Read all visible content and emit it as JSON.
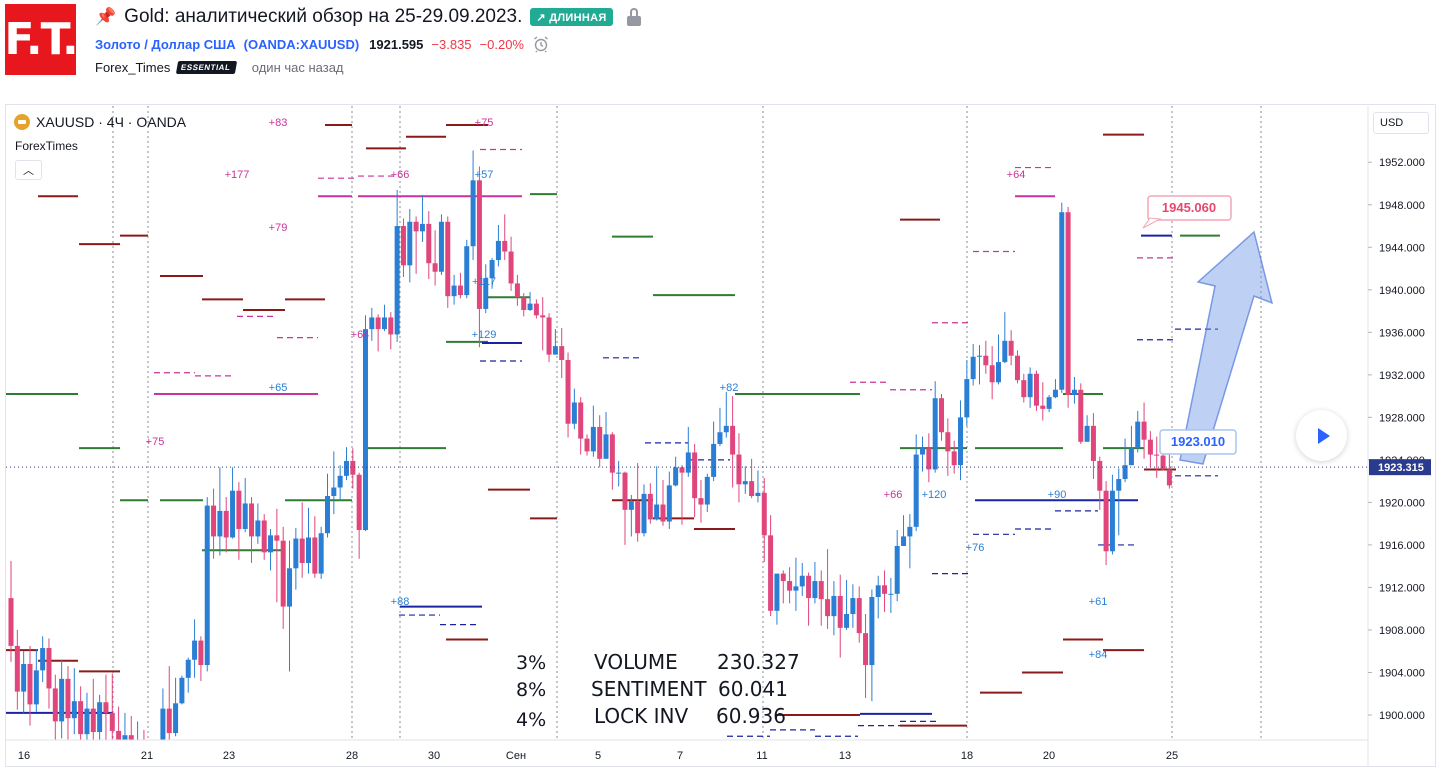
{
  "header": {
    "logo_text": "F.T.",
    "title": "Gold: аналитический обзор на 25-29.09.2023.",
    "direction_badge": "↗ ДЛИННАЯ",
    "instrument_name": "Золото / Доллар США",
    "instrument_ticker": "(OANDA:XAUUSD)",
    "last_price": "1921.595",
    "change_abs": "−3.835",
    "change_pct": "−0.20%",
    "author": "Forex_Times",
    "author_badge": "ESSENTIAL",
    "published": "один час назад"
  },
  "chart_header": {
    "symbol_line": "XAUUSD · 4Ч · OANDA",
    "indicator": "ForexTimes",
    "currency_button": "USD"
  },
  "colors": {
    "accent": "#2962ff",
    "up_candle": "#2a7fd4",
    "down_candle": "#e0457b",
    "badge_long": "#22ab94",
    "price_line": "#2a3a8c",
    "target_label": "#e8466e",
    "resistance_line": "#8b1a1a",
    "support_line": "#2e7d32"
  },
  "chart_data": {
    "type": "candlestick",
    "symbol": "XAUUSD",
    "timeframe": "4H",
    "ylim": [
      1897,
      1955
    ],
    "y_ticks": [
      "1952.000",
      "1948.000",
      "1944.000",
      "1940.000",
      "1936.000",
      "1932.000",
      "1928.000",
      "1924.000",
      "1920.000",
      "1916.000",
      "1912.000",
      "1908.000",
      "1904.000",
      "1900.000"
    ],
    "x_ticks": [
      "16",
      "21",
      "23",
      "28",
      "30",
      "Сен",
      "5",
      "7",
      "11",
      "13",
      "18",
      "20",
      "25"
    ],
    "current_price_label": "1923.315",
    "annotations": {
      "target": "1945.060",
      "entry": "1923.010"
    },
    "volume_labels": [
      "+83",
      "+75",
      "+177",
      "+66",
      "+57",
      "+79",
      "+117",
      "+64",
      "+129",
      "+65",
      "+75",
      "+88",
      "+82",
      "+66",
      "+120",
      "+76",
      "+90",
      "+64",
      "+61",
      "+84"
    ],
    "stats": [
      {
        "pct": "3%",
        "label": "VOLUME",
        "value": "230.327",
        "pct_color": "#1e8c56",
        "label_color": "#131722",
        "value_color": "#131722"
      },
      {
        "pct": "8%",
        "label": "SENTIMENT",
        "value": "60.041",
        "pct_color": "#2962ff",
        "label_color": "#2a7fd4",
        "value_color": "#2a7fd4"
      },
      {
        "pct": "4%",
        "label": "LOCK INV",
        "value": "60.936",
        "pct_color": "#1e8c56",
        "label_color": "#e6b422",
        "value_color": "#e6b422"
      }
    ],
    "candles": [
      [
        1911,
        1906.5,
        1914.5,
        1905
      ],
      [
        1906.5,
        1902.2,
        1908,
        1900.5
      ],
      [
        1902.2,
        1904.8,
        1906,
        1900.2
      ],
      [
        1904.8,
        1901,
        1906.5,
        1899
      ],
      [
        1901,
        1904.2,
        1906.2,
        1900.3
      ],
      [
        1904.2,
        1906.3,
        1907.4,
        1903.1
      ],
      [
        1906.3,
        1902.5,
        1907.2,
        1900.6
      ],
      [
        1902.5,
        1899.4,
        1903.8,
        1896.6
      ],
      [
        1899.4,
        1903.4,
        1905.2,
        1897.8
      ],
      [
        1903.4,
        1899.7,
        1904.6,
        1897.5
      ],
      [
        1899.7,
        1901.3,
        1904.4,
        1898.2
      ],
      [
        1901.3,
        1898.2,
        1902.7,
        1896
      ],
      [
        1898.2,
        1900.6,
        1902.1,
        1896.1
      ],
      [
        1900.6,
        1898.4,
        1903.4,
        1896.7
      ],
      [
        1898.4,
        1901.2,
        1901.9,
        1897.4
      ],
      [
        1901.2,
        1900.2,
        1903.8,
        1897.4
      ],
      [
        1900.2,
        1898.5,
        1903.9,
        1897.7
      ],
      [
        1898.5,
        1897.5,
        1900.8,
        1895.5
      ],
      [
        1897.5,
        1898.1,
        1900.2,
        1896.7
      ],
      [
        1898.1,
        1895.7,
        1899.9,
        1893.2
      ],
      [
        1895.7,
        1897.1,
        1899.4,
        1892.8
      ],
      [
        1897.1,
        1895.5,
        1898.6,
        1894.5
      ],
      [
        1895.5,
        1893.2,
        1896.1,
        1892.3
      ],
      [
        1893.2,
        1895,
        1895.7,
        1893.1
      ],
      [
        1895,
        1900.6,
        1902.5,
        1894.7
      ],
      [
        1900.6,
        1898.3,
        1904.6,
        1896.5
      ],
      [
        1898.3,
        1901.1,
        1903.5,
        1898
      ],
      [
        1901.1,
        1903.5,
        1903.7,
        1901
      ],
      [
        1903.5,
        1905.2,
        1905.4,
        1902.1
      ],
      [
        1905.2,
        1907,
        1909,
        1903.5
      ],
      [
        1907,
        1904.7,
        1907.4,
        1903.2
      ],
      [
        1904.7,
        1919.7,
        1920.5,
        1904.1
      ],
      [
        1919.7,
        1916.8,
        1921.3,
        1914.7
      ],
      [
        1916.8,
        1919.2,
        1923.3,
        1915
      ],
      [
        1919.2,
        1916.7,
        1920.5,
        1915.3
      ],
      [
        1916.7,
        1921.1,
        1923.3,
        1916.6
      ],
      [
        1921.1,
        1917.5,
        1921.9,
        1914.6
      ],
      [
        1917.5,
        1919.9,
        1922.3,
        1917.2
      ],
      [
        1919.9,
        1916.8,
        1920.5,
        1914.3
      ],
      [
        1916.8,
        1918.3,
        1919.9,
        1916.1
      ],
      [
        1918.3,
        1915.3,
        1918.9,
        1914.6
      ],
      [
        1915.3,
        1916.9,
        1917.5,
        1913.6
      ],
      [
        1916.9,
        1916.4,
        1919.4,
        1910.6
      ],
      [
        1916.4,
        1910.2,
        1917.7,
        1908.1
      ],
      [
        1910.2,
        1913.8,
        1916.4,
        1904.1
      ],
      [
        1913.8,
        1916.6,
        1917.6,
        1911.8
      ],
      [
        1916.6,
        1914.3,
        1920,
        1912.9
      ],
      [
        1914.3,
        1916.7,
        1919.5,
        1913.3
      ],
      [
        1916.7,
        1913.3,
        1918.7,
        1912.9
      ],
      [
        1913.3,
        1917.1,
        1917.7,
        1912.8
      ],
      [
        1917.1,
        1920.6,
        1922.7,
        1916.7
      ],
      [
        1920.6,
        1921.4,
        1924.8,
        1918.9
      ],
      [
        1921.4,
        1922.5,
        1923.5,
        1920.2
      ],
      [
        1922.5,
        1923.9,
        1925.2,
        1922.1
      ],
      [
        1923.9,
        1922.6,
        1925.1,
        1921.3
      ],
      [
        1922.6,
        1917.4,
        1922.8,
        1914.7
      ],
      [
        1917.4,
        1936.3,
        1937.6,
        1917.3
      ],
      [
        1936.3,
        1937.4,
        1938.3,
        1935.2
      ],
      [
        1937.4,
        1936.3,
        1937.7,
        1934.2
      ],
      [
        1936.3,
        1937.4,
        1938.6,
        1936.1
      ],
      [
        1937.4,
        1935.8,
        1937.9,
        1934.4
      ],
      [
        1935.8,
        1946,
        1949.4,
        1935.1
      ],
      [
        1946,
        1942.3,
        1946.7,
        1941.2
      ],
      [
        1942.3,
        1946.4,
        1947.6,
        1940.7
      ],
      [
        1946.4,
        1945.5,
        1946.9,
        1941.5
      ],
      [
        1945.5,
        1946.2,
        1948.9,
        1944.5
      ],
      [
        1946.2,
        1942.5,
        1947.4,
        1941
      ],
      [
        1942.5,
        1941.7,
        1945.6,
        1940.4
      ],
      [
        1941.7,
        1946.4,
        1947.1,
        1941.4
      ],
      [
        1946.4,
        1939.4,
        1946.9,
        1938.3
      ],
      [
        1939.4,
        1940.4,
        1941.4,
        1938.6
      ],
      [
        1940.4,
        1939.5,
        1941.6,
        1939.2
      ],
      [
        1939.5,
        1944.1,
        1944.7,
        1939.2
      ],
      [
        1944.1,
        1950.3,
        1953.1,
        1942.8
      ],
      [
        1950.3,
        1938.2,
        1951.6,
        1934.6
      ],
      [
        1938.2,
        1941.1,
        1942.4,
        1937.8
      ],
      [
        1941.1,
        1942.8,
        1943,
        1940.1
      ],
      [
        1942.8,
        1944.6,
        1946.1,
        1942.2
      ],
      [
        1944.6,
        1943.6,
        1947.1,
        1942.8
      ],
      [
        1943.6,
        1940.6,
        1945,
        1939.9
      ],
      [
        1940.6,
        1939.3,
        1941.4,
        1938.5
      ],
      [
        1939.3,
        1938.1,
        1939.7,
        1937.5
      ],
      [
        1938.1,
        1938.7,
        1939.8,
        1938
      ],
      [
        1938.7,
        1937.6,
        1939.1,
        1937.3
      ],
      [
        1937.6,
        1937.4,
        1939.3,
        1934.3
      ],
      [
        1937.4,
        1933.9,
        1937.8,
        1933.2
      ],
      [
        1933.9,
        1934.7,
        1936.3,
        1934.5
      ],
      [
        1934.7,
        1933.4,
        1936.4,
        1931.7
      ],
      [
        1933.4,
        1927.4,
        1934.1,
        1926.1
      ],
      [
        1927.4,
        1929.4,
        1930.7,
        1926.9
      ],
      [
        1929.4,
        1926,
        1929.9,
        1924.5
      ],
      [
        1926,
        1924.8,
        1926.4,
        1924.4
      ],
      [
        1924.8,
        1927.1,
        1929.1,
        1924.3
      ],
      [
        1927.1,
        1924.1,
        1928.2,
        1923.3
      ],
      [
        1924.1,
        1926.4,
        1928.5,
        1925.4
      ],
      [
        1926.4,
        1922.8,
        1926.6,
        1921.2
      ],
      [
        1922.8,
        1922.8,
        1923.9,
        1921.5
      ],
      [
        1922.8,
        1919.3,
        1922.9,
        1916
      ],
      [
        1919.3,
        1920.1,
        1920.7,
        1916.8
      ],
      [
        1920.1,
        1917.1,
        1923.7,
        1916.3
      ],
      [
        1917.1,
        1920.8,
        1921.7,
        1916.8
      ],
      [
        1920.8,
        1918.4,
        1921.8,
        1918
      ],
      [
        1918.4,
        1919.8,
        1923.4,
        1918.3
      ],
      [
        1919.8,
        1918.2,
        1922.1,
        1917.8
      ],
      [
        1918.2,
        1921.6,
        1922.9,
        1917.5
      ],
      [
        1921.6,
        1923.3,
        1924.3,
        1921.5
      ],
      [
        1923.3,
        1922.8,
        1923.5,
        1917.9
      ],
      [
        1922.8,
        1924.7,
        1927.1,
        1922.4
      ],
      [
        1924.7,
        1920.4,
        1925.5,
        1918.6
      ],
      [
        1920.4,
        1919.8,
        1922.1,
        1918.1
      ],
      [
        1919.8,
        1922.4,
        1922.7,
        1919.1
      ],
      [
        1922.4,
        1925.5,
        1927.6,
        1922
      ],
      [
        1925.5,
        1926.6,
        1928.9,
        1925.3
      ],
      [
        1926.6,
        1927.2,
        1930.4,
        1926.1
      ],
      [
        1927.2,
        1924.5,
        1930,
        1921.4
      ],
      [
        1924.5,
        1921.7,
        1926.5,
        1920
      ],
      [
        1921.7,
        1922,
        1923.4,
        1920.8
      ],
      [
        1922,
        1920.6,
        1924.1,
        1920.4
      ],
      [
        1920.6,
        1920.9,
        1923,
        1920
      ],
      [
        1920.9,
        1916.9,
        1922.3,
        1914.4
      ],
      [
        1916.9,
        1909.8,
        1918.8,
        1909.3
      ],
      [
        1909.8,
        1913.3,
        1913.3,
        1908.5
      ],
      [
        1913.3,
        1912.6,
        1913.6,
        1910.5
      ],
      [
        1912.6,
        1911.7,
        1913.9,
        1910.5
      ],
      [
        1911.7,
        1912.1,
        1914.8,
        1909.8
      ],
      [
        1912.1,
        1913.1,
        1914.3,
        1911.2
      ],
      [
        1913.1,
        1911,
        1913.4,
        1908.4
      ],
      [
        1911,
        1912.6,
        1914.4,
        1910.5
      ],
      [
        1912.6,
        1910.9,
        1913.6,
        1908.4
      ],
      [
        1910.9,
        1909.3,
        1915.6,
        1908.1
      ],
      [
        1909.3,
        1911.2,
        1912.6,
        1907.5
      ],
      [
        1911.2,
        1908.2,
        1913.2,
        1905.4
      ],
      [
        1908.2,
        1909.5,
        1912.7,
        1908
      ],
      [
        1909.5,
        1911,
        1912.3,
        1908.2
      ],
      [
        1911,
        1907.7,
        1912.1,
        1906.8
      ],
      [
        1907.7,
        1904.7,
        1909.5,
        1901.6
      ],
      [
        1904.7,
        1911.1,
        1911.8,
        1901.3
      ],
      [
        1911.1,
        1912.2,
        1913.1,
        1909.1
      ],
      [
        1912.2,
        1911.4,
        1913.6,
        1909.7
      ],
      [
        1911.4,
        1911.4,
        1912.9,
        1909.6
      ],
      [
        1911.4,
        1915.9,
        1917.4,
        1910.7
      ],
      [
        1915.9,
        1916.8,
        1918.8,
        1916.3
      ],
      [
        1916.8,
        1917.7,
        1918.9,
        1913.8
      ],
      [
        1917.7,
        1924.5,
        1926.4,
        1917.3
      ],
      [
        1924.5,
        1925.1,
        1926.2,
        1922.9
      ],
      [
        1925.1,
        1923.1,
        1926.5,
        1921.9
      ],
      [
        1923.1,
        1929.8,
        1931.4,
        1922.8
      ],
      [
        1929.8,
        1926.6,
        1930.2,
        1925.8
      ],
      [
        1926.6,
        1924.8,
        1927.9,
        1922.5
      ],
      [
        1924.8,
        1923.5,
        1925.8,
        1922.7
      ],
      [
        1923.5,
        1928,
        1929.6,
        1922.1
      ],
      [
        1928,
        1931.6,
        1933.4,
        1927.2
      ],
      [
        1931.6,
        1933.7,
        1934.9,
        1931
      ],
      [
        1933.7,
        1933.8,
        1934.8,
        1931.1
      ],
      [
        1933.8,
        1932.9,
        1935.2,
        1932.1
      ],
      [
        1932.9,
        1931.3,
        1934.7,
        1929.7
      ],
      [
        1931.3,
        1933.2,
        1935.8,
        1931.1
      ],
      [
        1933.2,
        1935.2,
        1937.9,
        1933.1
      ],
      [
        1935.2,
        1933.8,
        1936.2,
        1932.9
      ],
      [
        1933.8,
        1931.5,
        1934.3,
        1931.2
      ],
      [
        1931.5,
        1929.9,
        1932.1,
        1929.4
      ],
      [
        1929.9,
        1932.1,
        1932.7,
        1928.9
      ],
      [
        1932.1,
        1929.1,
        1932.4,
        1928.6
      ],
      [
        1929.1,
        1928.8,
        1931.3,
        1927.7
      ],
      [
        1928.8,
        1929.9,
        1930.1,
        1928.5
      ],
      [
        1929.9,
        1930.6,
        1931.6,
        1929.8
      ],
      [
        1930.6,
        1947.3,
        1948.2,
        1930.3
      ],
      [
        1947.3,
        1930.1,
        1947.8,
        1928.9
      ],
      [
        1930.1,
        1930.6,
        1931.8,
        1929.3
      ],
      [
        1930.6,
        1925.7,
        1931.2,
        1925.5
      ],
      [
        1925.7,
        1927.2,
        1928.2,
        1926.3
      ],
      [
        1927.2,
        1923.9,
        1928.4,
        1922.2
      ],
      [
        1923.9,
        1921.1,
        1924.3,
        1919.3
      ],
      [
        1921.1,
        1915.4,
        1922,
        1914.1
      ],
      [
        1915.4,
        1921.1,
        1922.6,
        1915.1
      ],
      [
        1921.1,
        1922.2,
        1923.2,
        1916.9
      ],
      [
        1922.2,
        1923.5,
        1926,
        1921.9
      ],
      [
        1923.5,
        1925.1,
        1927.2,
        1924.7
      ],
      [
        1925.1,
        1927.6,
        1928.6,
        1924.7
      ],
      [
        1927.6,
        1925.9,
        1929.4,
        1924.1
      ],
      [
        1925.9,
        1924.5,
        1926.7,
        1923.3
      ],
      [
        1924.5,
        1924.4,
        1926.2,
        1922.3
      ],
      [
        1924.4,
        1923.1,
        1925.5,
        1923
      ],
      [
        1923.1,
        1921.6,
        1924.6,
        1921.3
      ]
    ]
  }
}
